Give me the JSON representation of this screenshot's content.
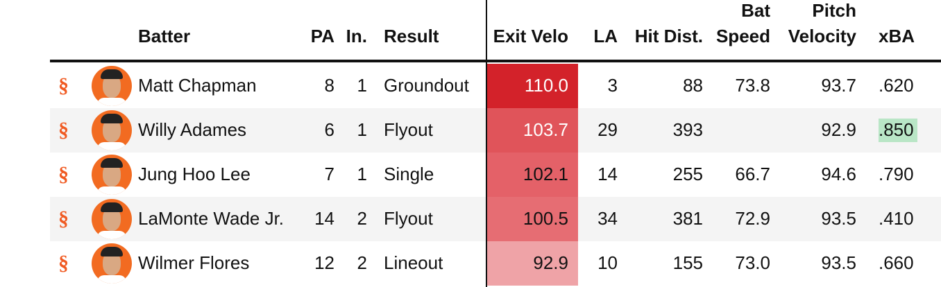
{
  "table": {
    "headers": [
      "Batter",
      "PA",
      "In.",
      "Result",
      "Exit Velo",
      "LA",
      "Hit Dist.",
      [
        "Bat",
        "Speed"
      ],
      [
        "Pitch",
        "Velocity"
      ],
      "xBA"
    ],
    "rows": [
      {
        "batter": "Matt Chapman",
        "pa": "8",
        "inning": "1",
        "result": "Groundout",
        "exit_velo": "110.0",
        "la": "3",
        "hit_dist": "88",
        "bat_speed": "73.8",
        "pitch_velocity": "93.7",
        "xba": ".620",
        "exit_velo_color": "#d3222a"
      },
      {
        "batter": "Willy Adames",
        "pa": "6",
        "inning": "1",
        "result": "Flyout",
        "exit_velo": "103.7",
        "la": "29",
        "hit_dist": "393",
        "bat_speed": null,
        "pitch_velocity": "92.9",
        "xba": ".850",
        "exit_velo_color": "#e0545a",
        "xba_color": "#b9e6c6"
      },
      {
        "batter": "Jung Hoo Lee",
        "pa": "7",
        "inning": "1",
        "result": "Single",
        "exit_velo": "102.1",
        "la": "14",
        "hit_dist": "255",
        "bat_speed": "66.7",
        "pitch_velocity": "94.6",
        "xba": ".790",
        "exit_velo_color": "#e46168"
      },
      {
        "batter": "LaMonte Wade Jr.",
        "pa": "14",
        "inning": "2",
        "result": "Flyout",
        "exit_velo": "100.5",
        "la": "34",
        "hit_dist": "381",
        "bat_speed": "72.9",
        "pitch_velocity": "93.5",
        "xba": ".410",
        "exit_velo_color": "#e66d73"
      },
      {
        "batter": "Wilmer Flores",
        "pa": "12",
        "inning": "2",
        "result": "Lineout",
        "exit_velo": "92.9",
        "la": "10",
        "hit_dist": "155",
        "bat_speed": "73.0",
        "pitch_velocity": "93.5",
        "xba": ".660",
        "exit_velo_color": "#efa3a7"
      }
    ]
  }
}
